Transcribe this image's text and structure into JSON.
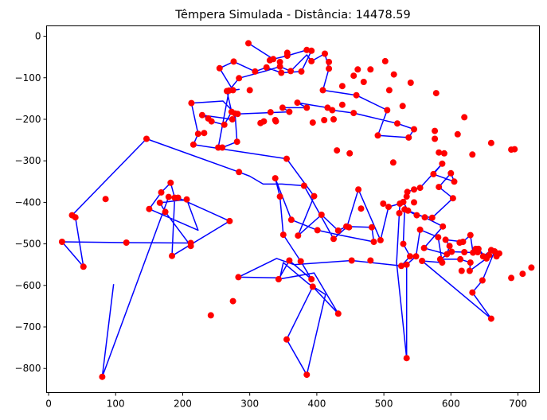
{
  "chart_data": {
    "type": "scatter",
    "title": "Têmpera Simulada - Distância: 14478.59",
    "xlabel": "",
    "ylabel": "",
    "xlim": [
      -3,
      732
    ],
    "ylim": [
      -858,
      25
    ],
    "x_ticks": [
      0,
      100,
      200,
      300,
      400,
      500,
      600,
      700
    ],
    "y_ticks": [
      0,
      -100,
      -200,
      -300,
      -400,
      -500,
      -600,
      -700,
      -800
    ],
    "grid": false,
    "colors": {
      "route": "#0000ff",
      "cities": "#ff0000"
    },
    "route": [
      [
        298,
        -17
      ],
      [
        335,
        -55
      ],
      [
        356,
        -47
      ],
      [
        385,
        -33
      ],
      [
        392,
        -35
      ],
      [
        377,
        -85
      ],
      [
        347,
        -88
      ],
      [
        325,
        -75
      ],
      [
        308,
        -85
      ],
      [
        276,
        -61
      ],
      [
        255,
        -77
      ],
      [
        275,
        -130
      ],
      [
        284,
        -128
      ],
      [
        266,
        -132
      ],
      [
        273,
        -182
      ],
      [
        262,
        -213
      ],
      [
        243,
        -205
      ],
      [
        238,
        -198
      ],
      [
        229,
        -190
      ],
      [
        274,
        -200
      ],
      [
        282,
        -187
      ],
      [
        359,
        -182
      ],
      [
        349,
        -172
      ],
      [
        385,
        -172
      ],
      [
        371,
        -160
      ],
      [
        416,
        -172
      ],
      [
        423,
        -178
      ],
      [
        455,
        -185
      ],
      [
        520,
        -210
      ],
      [
        545,
        -224
      ],
      [
        537,
        -244
      ],
      [
        491,
        -239
      ],
      [
        505,
        -178
      ],
      [
        459,
        -142
      ],
      [
        409,
        -130
      ],
      [
        418,
        -78
      ],
      [
        412,
        -42
      ],
      [
        392,
        -60
      ],
      [
        385,
        -45
      ],
      [
        361,
        -84
      ],
      [
        345,
        -73
      ],
      [
        325,
        -83
      ],
      [
        284,
        -101
      ],
      [
        269,
        -131
      ],
      [
        253,
        -268
      ],
      [
        259,
        -268
      ],
      [
        281,
        -254
      ],
      [
        278,
        -186
      ],
      [
        260,
        -156
      ],
      [
        213,
        -161
      ],
      [
        223,
        -235
      ],
      [
        216,
        -261
      ],
      [
        355,
        -295
      ],
      [
        396,
        -385
      ],
      [
        372,
        -480
      ],
      [
        407,
        -430
      ],
      [
        432,
        -468
      ],
      [
        444,
        -458
      ],
      [
        482,
        -460
      ],
      [
        485,
        -495
      ],
      [
        432,
        -478
      ],
      [
        401,
        -467
      ],
      [
        362,
        -442
      ],
      [
        338,
        -342
      ],
      [
        345,
        -386
      ],
      [
        350,
        -478
      ],
      [
        376,
        -542
      ],
      [
        392,
        -585
      ],
      [
        359,
        -540
      ],
      [
        343,
        -585
      ],
      [
        396,
        -570
      ],
      [
        432,
        -668
      ],
      [
        394,
        -603
      ],
      [
        355,
        -730
      ],
      [
        385,
        -815
      ],
      [
        413,
        -622
      ],
      [
        387,
        -595
      ],
      [
        350,
        -545
      ],
      [
        345,
        -582
      ],
      [
        283,
        -580
      ],
      [
        340,
        -535
      ],
      [
        366,
        -550
      ],
      [
        452,
        -540
      ],
      [
        526,
        -553
      ],
      [
        539,
        -530
      ],
      [
        529,
        -500
      ],
      [
        531,
        -417
      ],
      [
        549,
        -431
      ],
      [
        572,
        -437
      ],
      [
        603,
        -390
      ],
      [
        582,
        -363
      ],
      [
        600,
        -330
      ],
      [
        605,
        -350
      ],
      [
        574,
        -332
      ],
      [
        587,
        -307
      ],
      [
        554,
        -365
      ],
      [
        545,
        -369
      ],
      [
        535,
        -375
      ],
      [
        534,
        -386
      ],
      [
        529,
        -399
      ],
      [
        536,
        -420
      ],
      [
        561,
        -436
      ],
      [
        588,
        -458
      ],
      [
        560,
        -510
      ],
      [
        594,
        -525
      ],
      [
        598,
        -505
      ],
      [
        592,
        -490
      ],
      [
        618,
        -495
      ],
      [
        629,
        -479
      ],
      [
        633,
        -521
      ],
      [
        620,
        -520
      ],
      [
        601,
        -519
      ],
      [
        584,
        -537
      ],
      [
        614,
        -537
      ],
      [
        629,
        -545
      ],
      [
        628,
        -565
      ],
      [
        653,
        -535
      ],
      [
        641,
        -512
      ],
      [
        648,
        -530
      ],
      [
        660,
        -515
      ],
      [
        665,
        -518
      ],
      [
        647,
        -588
      ],
      [
        632,
        -617
      ],
      [
        660,
        -680
      ],
      [
        557,
        -541
      ],
      [
        587,
        -545
      ],
      [
        581,
        -484
      ],
      [
        554,
        -466
      ],
      [
        548,
        -530
      ],
      [
        534,
        -550
      ],
      [
        534,
        -775
      ],
      [
        519,
        -545
      ],
      [
        523,
        -426
      ],
      [
        524,
        -403
      ],
      [
        507,
        -411
      ],
      [
        495,
        -491
      ],
      [
        462,
        -369
      ],
      [
        445,
        -459
      ],
      [
        425,
        -488
      ],
      [
        381,
        -360
      ],
      [
        348,
        -356
      ],
      [
        320,
        -356
      ],
      [
        300,
        -337
      ],
      [
        284,
        -327
      ],
      [
        146,
        -247
      ],
      [
        35,
        -431
      ],
      [
        40,
        -436
      ],
      [
        52,
        -555
      ],
      [
        20,
        -495
      ],
      [
        116,
        -497
      ],
      [
        212,
        -498
      ],
      [
        212,
        -505
      ],
      [
        174,
        -423
      ],
      [
        166,
        -401
      ],
      [
        206,
        -393
      ],
      [
        223,
        -467
      ],
      [
        150,
        -416
      ],
      [
        168,
        -376
      ],
      [
        182,
        -353
      ],
      [
        188,
        -389
      ],
      [
        184,
        -529
      ],
      [
        270,
        -445
      ],
      [
        193,
        -389
      ],
      [
        179,
        -387
      ],
      [
        80,
        -820
      ],
      [
        97,
        -597
      ]
    ],
    "points": [
      [
        298,
        -17
      ],
      [
        335,
        -55
      ],
      [
        356,
        -47
      ],
      [
        385,
        -33
      ],
      [
        392,
        -35
      ],
      [
        377,
        -85
      ],
      [
        347,
        -88
      ],
      [
        325,
        -75
      ],
      [
        308,
        -85
      ],
      [
        276,
        -61
      ],
      [
        255,
        -77
      ],
      [
        275,
        -130
      ],
      [
        266,
        -132
      ],
      [
        273,
        -182
      ],
      [
        262,
        -213
      ],
      [
        243,
        -205
      ],
      [
        238,
        -198
      ],
      [
        229,
        -190
      ],
      [
        274,
        -200
      ],
      [
        282,
        -187
      ],
      [
        359,
        -182
      ],
      [
        349,
        -172
      ],
      [
        385,
        -172
      ],
      [
        371,
        -160
      ],
      [
        416,
        -172
      ],
      [
        423,
        -178
      ],
      [
        455,
        -185
      ],
      [
        520,
        -210
      ],
      [
        545,
        -224
      ],
      [
        537,
        -244
      ],
      [
        491,
        -239
      ],
      [
        505,
        -178
      ],
      [
        459,
        -142
      ],
      [
        409,
        -130
      ],
      [
        418,
        -78
      ],
      [
        412,
        -42
      ],
      [
        392,
        -60
      ],
      [
        361,
        -84
      ],
      [
        345,
        -73
      ],
      [
        284,
        -101
      ],
      [
        269,
        -131
      ],
      [
        253,
        -268
      ],
      [
        259,
        -268
      ],
      [
        281,
        -254
      ],
      [
        278,
        -186
      ],
      [
        213,
        -161
      ],
      [
        223,
        -235
      ],
      [
        216,
        -261
      ],
      [
        355,
        -295
      ],
      [
        396,
        -385
      ],
      [
        372,
        -480
      ],
      [
        407,
        -430
      ],
      [
        432,
        -468
      ],
      [
        444,
        -458
      ],
      [
        482,
        -460
      ],
      [
        485,
        -495
      ],
      [
        401,
        -467
      ],
      [
        362,
        -442
      ],
      [
        338,
        -342
      ],
      [
        345,
        -386
      ],
      [
        350,
        -478
      ],
      [
        376,
        -542
      ],
      [
        392,
        -585
      ],
      [
        359,
        -540
      ],
      [
        343,
        -585
      ],
      [
        432,
        -668
      ],
      [
        394,
        -603
      ],
      [
        355,
        -730
      ],
      [
        385,
        -815
      ],
      [
        283,
        -580
      ],
      [
        452,
        -540
      ],
      [
        526,
        -553
      ],
      [
        539,
        -530
      ],
      [
        529,
        -500
      ],
      [
        531,
        -417
      ],
      [
        549,
        -431
      ],
      [
        572,
        -437
      ],
      [
        603,
        -390
      ],
      [
        582,
        -363
      ],
      [
        600,
        -330
      ],
      [
        605,
        -350
      ],
      [
        574,
        -332
      ],
      [
        587,
        -307
      ],
      [
        554,
        -365
      ],
      [
        545,
        -369
      ],
      [
        535,
        -375
      ],
      [
        534,
        -386
      ],
      [
        529,
        -399
      ],
      [
        536,
        -420
      ],
      [
        561,
        -436
      ],
      [
        588,
        -458
      ],
      [
        560,
        -510
      ],
      [
        594,
        -525
      ],
      [
        598,
        -505
      ],
      [
        592,
        -490
      ],
      [
        618,
        -495
      ],
      [
        629,
        -479
      ],
      [
        633,
        -521
      ],
      [
        620,
        -520
      ],
      [
        601,
        -519
      ],
      [
        584,
        -537
      ],
      [
        614,
        -537
      ],
      [
        629,
        -545
      ],
      [
        628,
        -565
      ],
      [
        653,
        -535
      ],
      [
        641,
        -512
      ],
      [
        648,
        -530
      ],
      [
        660,
        -515
      ],
      [
        665,
        -518
      ],
      [
        647,
        -588
      ],
      [
        632,
        -617
      ],
      [
        660,
        -680
      ],
      [
        557,
        -541
      ],
      [
        587,
        -545
      ],
      [
        581,
        -484
      ],
      [
        554,
        -466
      ],
      [
        548,
        -530
      ],
      [
        534,
        -550
      ],
      [
        534,
        -775
      ],
      [
        523,
        -426
      ],
      [
        524,
        -403
      ],
      [
        507,
        -411
      ],
      [
        495,
        -491
      ],
      [
        462,
        -369
      ],
      [
        425,
        -488
      ],
      [
        381,
        -360
      ],
      [
        284,
        -327
      ],
      [
        146,
        -247
      ],
      [
        35,
        -431
      ],
      [
        40,
        -436
      ],
      [
        52,
        -555
      ],
      [
        20,
        -495
      ],
      [
        116,
        -497
      ],
      [
        212,
        -498
      ],
      [
        212,
        -505
      ],
      [
        174,
        -423
      ],
      [
        166,
        -401
      ],
      [
        206,
        -393
      ],
      [
        150,
        -416
      ],
      [
        168,
        -376
      ],
      [
        182,
        -353
      ],
      [
        188,
        -389
      ],
      [
        184,
        -529
      ],
      [
        270,
        -445
      ],
      [
        193,
        -389
      ],
      [
        179,
        -387
      ],
      [
        80,
        -820
      ],
      [
        242,
        -672
      ],
      [
        275,
        -638
      ],
      [
        85,
        -392
      ],
      [
        438,
        -120
      ],
      [
        470,
        -110
      ],
      [
        455,
        -95
      ],
      [
        480,
        -80
      ],
      [
        502,
        -60
      ],
      [
        515,
        -92
      ],
      [
        461,
        -80
      ],
      [
        418,
        -62
      ],
      [
        438,
        -165
      ],
      [
        508,
        -130
      ],
      [
        528,
        -168
      ],
      [
        540,
        -112
      ],
      [
        578,
        -137
      ],
      [
        576,
        -247
      ],
      [
        582,
        -280
      ],
      [
        620,
        -195
      ],
      [
        660,
        -257
      ],
      [
        632,
        -285
      ],
      [
        690,
        -273
      ],
      [
        695,
        -272
      ],
      [
        610,
        -236
      ],
      [
        576,
        -228
      ],
      [
        590,
        -282
      ],
      [
        545,
        -400
      ],
      [
        514,
        -304
      ],
      [
        499,
        -403
      ],
      [
        613,
        -497
      ],
      [
        637,
        -512
      ],
      [
        690,
        -582
      ],
      [
        720,
        -557
      ],
      [
        707,
        -572
      ],
      [
        640,
        -520
      ],
      [
        657,
        -527
      ],
      [
        668,
        -530
      ],
      [
        672,
        -523
      ],
      [
        616,
        -565
      ],
      [
        480,
        -540
      ],
      [
        448,
        -460
      ],
      [
        466,
        -415
      ],
      [
        449,
        -282
      ],
      [
        430,
        -275
      ],
      [
        425,
        -200
      ],
      [
        411,
        -202
      ],
      [
        394,
        -208
      ],
      [
        321,
        -205
      ],
      [
        316,
        -209
      ],
      [
        331,
        -183
      ],
      [
        232,
        -233
      ],
      [
        300,
        -130
      ],
      [
        338,
        -202
      ],
      [
        339,
        -205
      ],
      [
        330,
        -58
      ],
      [
        345,
        -62
      ],
      [
        356,
        -40
      ]
    ]
  }
}
